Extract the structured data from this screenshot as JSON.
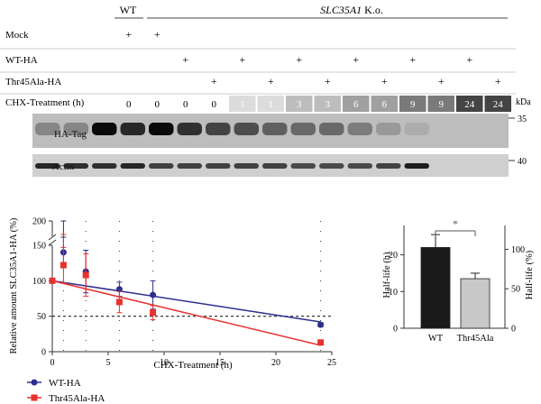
{
  "blot": {
    "group_wt": "WT",
    "group_ko_gene": "SLC35A1",
    "group_ko_suffix": " K.o.",
    "row_labels": [
      "Mock",
      "WT-HA",
      "Thr45Ala-HA",
      "CHX-Treatment (h)"
    ],
    "plus_symbol": "+",
    "lanes": [
      {
        "mock": true,
        "wt": false,
        "thr": false,
        "time": "0",
        "shade": "#ffffff",
        "text_color": "#000000"
      },
      {
        "mock": true,
        "wt": false,
        "thr": false,
        "time": "0",
        "shade": "#ffffff",
        "text_color": "#000000"
      },
      {
        "mock": false,
        "wt": true,
        "thr": false,
        "time": "0",
        "shade": "#ffffff",
        "text_color": "#000000"
      },
      {
        "mock": false,
        "wt": false,
        "thr": true,
        "time": "0",
        "shade": "#ffffff",
        "text_color": "#000000"
      },
      {
        "mock": false,
        "wt": true,
        "thr": false,
        "time": "1",
        "shade": "#dcdcdc",
        "text_color": "#ffffff"
      },
      {
        "mock": false,
        "wt": false,
        "thr": true,
        "time": "1",
        "shade": "#dcdcdc",
        "text_color": "#ffffff"
      },
      {
        "mock": false,
        "wt": true,
        "thr": false,
        "time": "3",
        "shade": "#bdbdbd",
        "text_color": "#ffffff"
      },
      {
        "mock": false,
        "wt": false,
        "thr": true,
        "time": "3",
        "shade": "#bdbdbd",
        "text_color": "#ffffff"
      },
      {
        "mock": false,
        "wt": true,
        "thr": false,
        "time": "6",
        "shade": "#a0a0a0",
        "text_color": "#ffffff"
      },
      {
        "mock": false,
        "wt": false,
        "thr": true,
        "time": "6",
        "shade": "#a0a0a0",
        "text_color": "#ffffff"
      },
      {
        "mock": false,
        "wt": true,
        "thr": false,
        "time": "9",
        "shade": "#7a7a7a",
        "text_color": "#ffffff"
      },
      {
        "mock": false,
        "wt": false,
        "thr": true,
        "time": "9",
        "shade": "#7a7a7a",
        "text_color": "#ffffff"
      },
      {
        "mock": false,
        "wt": true,
        "thr": false,
        "time": "24",
        "shade": "#444444",
        "text_color": "#ffffff"
      },
      {
        "mock": false,
        "wt": false,
        "thr": true,
        "time": "24",
        "shade": "#444444",
        "text_color": "#ffffff"
      }
    ],
    "kda_label": "kDa",
    "marker_35": "35",
    "marker_40": "40",
    "ha_label": "HA-Tag",
    "actin_label": "Actin",
    "ha_band_intensity": [
      0.35,
      0.35,
      1.0,
      0.85,
      1.0,
      0.8,
      0.7,
      0.65,
      0.55,
      0.5,
      0.5,
      0.4,
      0.25,
      0.15
    ],
    "actin_band_intensity": [
      0.9,
      0.85,
      0.85,
      0.9,
      0.75,
      0.75,
      0.75,
      0.75,
      0.75,
      0.7,
      0.7,
      0.7,
      0.75,
      0.95
    ]
  },
  "chart_data": [
    {
      "type": "line",
      "xlabel": "CHX-Treatment (h)",
      "ylabel": "Relative amount SLC35A1-HA (%)",
      "xlim": [
        0,
        25
      ],
      "xticks": [
        0,
        5,
        10,
        15,
        20,
        25
      ],
      "yticks_lower": [
        0,
        50,
        100,
        150
      ],
      "ytick_upper": 200,
      "axis_break": true,
      "reference_line": 50,
      "vertical_dotted_lines_at": [
        1,
        3,
        6,
        9,
        24
      ],
      "series": [
        {
          "name": "WT-HA",
          "color": "#2e2e8f",
          "marker": "circle",
          "points": [
            {
              "x": 0,
              "y": 100,
              "err": 0
            },
            {
              "x": 1,
              "y": 140,
              "err": 20
            },
            {
              "x": 3,
              "y": 113,
              "err": 30
            },
            {
              "x": 6,
              "y": 88,
              "err": 10
            },
            {
              "x": 9,
              "y": 80,
              "err": 20
            },
            {
              "x": 24,
              "y": 38,
              "err": 3
            }
          ],
          "fit": [
            [
              0,
              100
            ],
            [
              24,
              42
            ]
          ]
        },
        {
          "name": "Thr45Ala-HA",
          "color": "#e8322e",
          "marker": "square",
          "points": [
            {
              "x": 0,
              "y": 100,
              "err": 0
            },
            {
              "x": 1,
              "y": 122,
              "err": 25
            },
            {
              "x": 3,
              "y": 108,
              "err": 30
            },
            {
              "x": 6,
              "y": 70,
              "err": 15
            },
            {
              "x": 9,
              "y": 55,
              "err": 10
            },
            {
              "x": 24,
              "y": 13,
              "err": 2
            }
          ],
          "fit": [
            [
              0,
              100
            ],
            [
              24,
              9
            ]
          ]
        }
      ],
      "legend_position": "bottom-left"
    },
    {
      "type": "bar",
      "categories": [
        "WT",
        "Thr45Ala"
      ],
      "values": [
        22,
        13.5
      ],
      "errors": [
        3.5,
        1.5
      ],
      "colors": [
        "#1a1a1a",
        "#c8c8c8"
      ],
      "ylabel_left": "Half-life (h)",
      "ylabel_right": "Half-life (%)",
      "ylim": [
        0,
        28
      ],
      "yticks_left": [
        0,
        10,
        20
      ],
      "yticks_right": [
        0,
        50,
        100
      ],
      "significance": "*"
    }
  ]
}
